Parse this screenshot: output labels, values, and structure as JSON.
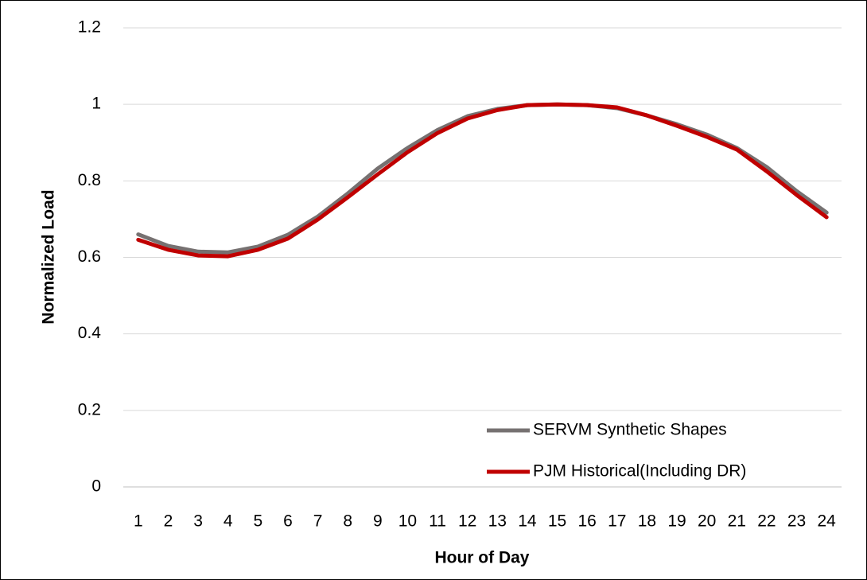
{
  "chart_data": {
    "type": "line",
    "x_label": "Hour of Day",
    "y_label": "Normalized Load",
    "categories": [
      1,
      2,
      3,
      4,
      5,
      6,
      7,
      8,
      9,
      10,
      11,
      12,
      13,
      14,
      15,
      16,
      17,
      18,
      19,
      20,
      21,
      22,
      23,
      24
    ],
    "series": [
      {
        "name": "SERVM Synthetic Shapes",
        "color": "#767171",
        "values": [
          0.66,
          0.63,
          0.615,
          0.613,
          0.628,
          0.659,
          0.707,
          0.767,
          0.832,
          0.886,
          0.933,
          0.969,
          0.988,
          0.998,
          1.0,
          0.998,
          0.99,
          0.971,
          0.948,
          0.921,
          0.886,
          0.836,
          0.773,
          0.717
        ]
      },
      {
        "name": "PJM Historical(Including DR)",
        "color": "#c00000",
        "values": [
          0.646,
          0.62,
          0.605,
          0.603,
          0.62,
          0.649,
          0.699,
          0.757,
          0.817,
          0.875,
          0.925,
          0.963,
          0.985,
          0.998,
          1.0,
          0.998,
          0.992,
          0.971,
          0.944,
          0.915,
          0.882,
          0.825,
          0.763,
          0.705
        ]
      }
    ],
    "ylim": [
      0,
      1.2
    ],
    "yticks": [
      0,
      0.2,
      0.4,
      0.6,
      0.8,
      1,
      1.2
    ],
    "grid": true,
    "legend": "lower-right"
  }
}
